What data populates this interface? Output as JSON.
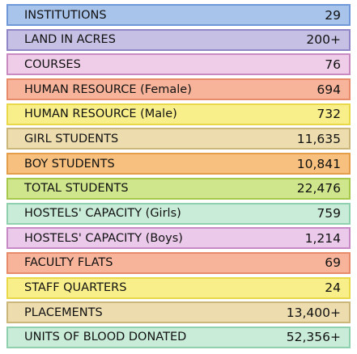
{
  "items": [
    {
      "label": "INSTITUTIONS",
      "value": "29"
    },
    {
      "label": "LAND IN ACRES",
      "value": "200+"
    },
    {
      "label": "COURSES",
      "value": "76"
    },
    {
      "label": "HUMAN RESOURCE (Female)",
      "value": "694"
    },
    {
      "label": "HUMAN RESOURCE (Male)",
      "value": "732"
    },
    {
      "label": "GIRL STUDENTS",
      "value": "11,635"
    },
    {
      "label": "BOY STUDENTS",
      "value": "10,841"
    },
    {
      "label": "TOTAL STUDENTS",
      "value": "22,476"
    },
    {
      "label": "HOSTELS' CAPACITY (Girls)",
      "value": "759"
    },
    {
      "label": "HOSTELS' CAPACITY (Boys)",
      "value": "1,214"
    },
    {
      "label": "FACULTY FLATS",
      "value": "69"
    },
    {
      "label": "STAFF QUARTERS",
      "value": "24"
    },
    {
      "label": "PLACEMENTS",
      "value": "13,400+"
    },
    {
      "label": "UNITS OF BLOOD DONATED",
      "value": "52,356+"
    }
  ]
}
